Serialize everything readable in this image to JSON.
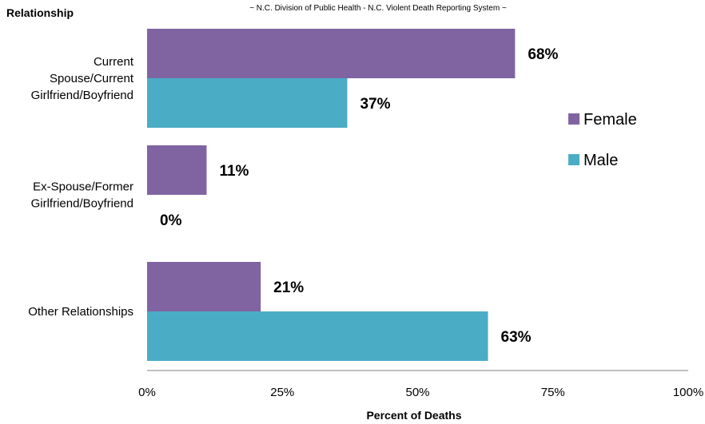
{
  "colors": {
    "female": "#8064A2",
    "male": "#4BACC6",
    "axis": "#808080"
  },
  "chart_data": {
    "type": "bar",
    "orientation": "horizontal",
    "subtitle": "~ N.C. Division of Public Health - N.C. Violent Death Reporting System ~",
    "ylabel": "Relationship",
    "xlabel": "Percent of Deaths",
    "categories": [
      [
        "Current",
        "Spouse/Current",
        "Girlfriend/Boyfriend"
      ],
      [
        "Ex-Spouse/Former",
        "Girlfriend/Boyfriend"
      ],
      [
        "Other Relationships"
      ]
    ],
    "series": [
      {
        "name": "Female",
        "values": [
          68,
          11,
          21
        ],
        "labels": [
          "68%",
          "11%",
          "21%"
        ]
      },
      {
        "name": "Male",
        "values": [
          37,
          0,
          63
        ],
        "labels": [
          "37%",
          "0%",
          "63%"
        ]
      }
    ],
    "xlim": [
      0,
      100
    ],
    "xticks": [
      0,
      25,
      50,
      75,
      100
    ],
    "xtick_labels": [
      "0%",
      "25%",
      "50%",
      "75%",
      "100%"
    ],
    "grid": false,
    "legend_position": "right"
  }
}
